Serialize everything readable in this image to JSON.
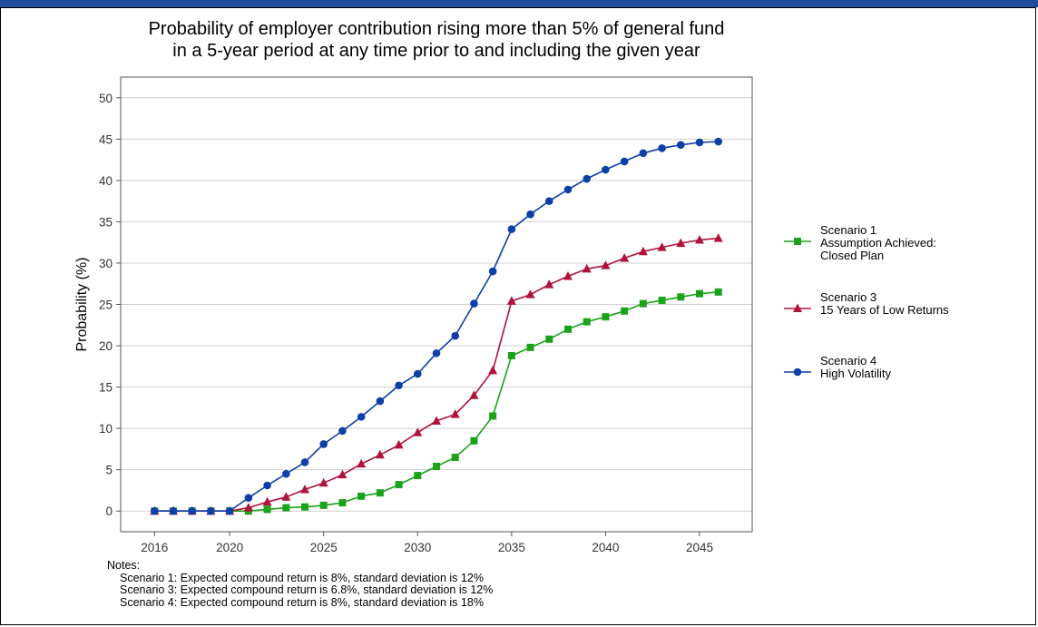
{
  "colors": {
    "top_bar": "#1f4e9c",
    "grid": "#d0d0d0",
    "axis": "#555555"
  },
  "chart_data": {
    "type": "line",
    "title": [
      "Probability of employer contribution rising more than 5% of general fund",
      "in a 5-year period at any time prior to and including the given year"
    ],
    "xlabel": "",
    "ylabel": "Probability (%)",
    "xlim": [
      2014.2,
      2047.8
    ],
    "ylim": [
      -2.5,
      52.5
    ],
    "yticks": [
      0,
      5,
      10,
      15,
      20,
      25,
      30,
      35,
      40,
      45,
      50
    ],
    "xticks": [
      2016,
      2020,
      2025,
      2030,
      2035,
      2040,
      2045
    ],
    "grid": true,
    "legend_position": "right",
    "x": [
      2016,
      2017,
      2018,
      2019,
      2020,
      2021,
      2022,
      2023,
      2024,
      2025,
      2026,
      2027,
      2028,
      2029,
      2030,
      2031,
      2032,
      2033,
      2034,
      2035,
      2036,
      2037,
      2038,
      2039,
      2040,
      2041,
      2042,
      2043,
      2044,
      2045,
      2046
    ],
    "series": [
      {
        "name": "Scenario 1",
        "legend_lines": [
          "Scenario 1",
          "Assumption Achieved:",
          "Closed Plan"
        ],
        "color": "#1aa31a",
        "marker": "square",
        "values": [
          0,
          0,
          0,
          0,
          0,
          0,
          0.2,
          0.4,
          0.5,
          0.7,
          1.0,
          1.8,
          2.2,
          3.2,
          4.3,
          5.4,
          6.5,
          8.5,
          11.5,
          18.8,
          19.8,
          20.8,
          22.0,
          22.9,
          23.5,
          24.2,
          25.1,
          25.5,
          25.9,
          26.3,
          26.5
        ]
      },
      {
        "name": "Scenario 3",
        "legend_lines": [
          "Scenario 3",
          "15 Years of Low Returns"
        ],
        "color": "#b0133a",
        "marker": "triangle",
        "values": [
          0,
          0,
          0,
          0,
          0,
          0.4,
          1.1,
          1.7,
          2.6,
          3.4,
          4.4,
          5.7,
          6.8,
          8.0,
          9.5,
          10.9,
          11.7,
          14.0,
          17.0,
          25.4,
          26.2,
          27.4,
          28.4,
          29.3,
          29.7,
          30.6,
          31.4,
          31.9,
          32.4,
          32.8,
          33.0
        ]
      },
      {
        "name": "Scenario 4",
        "legend_lines": [
          "Scenario 4",
          "High Volatility"
        ],
        "color": "#0c3fa8",
        "marker": "circle",
        "values": [
          0,
          0,
          0,
          0,
          0,
          1.6,
          3.1,
          4.5,
          5.9,
          8.1,
          9.7,
          11.4,
          13.3,
          15.2,
          16.6,
          19.1,
          21.2,
          25.1,
          29.0,
          34.1,
          35.9,
          37.5,
          38.9,
          40.2,
          41.3,
          42.3,
          43.3,
          43.9,
          44.3,
          44.6,
          44.7
        ]
      }
    ]
  },
  "notes": {
    "header": "Notes:",
    "lines": [
      "Scenario 1: Expected compound return is 8%, standard deviation is 12%",
      "Scenario 3: Expected compound return is 6.8%, standard deviation is 12%",
      "Scenario 4: Expected compound return is 8%, standard deviation is 18%"
    ]
  }
}
